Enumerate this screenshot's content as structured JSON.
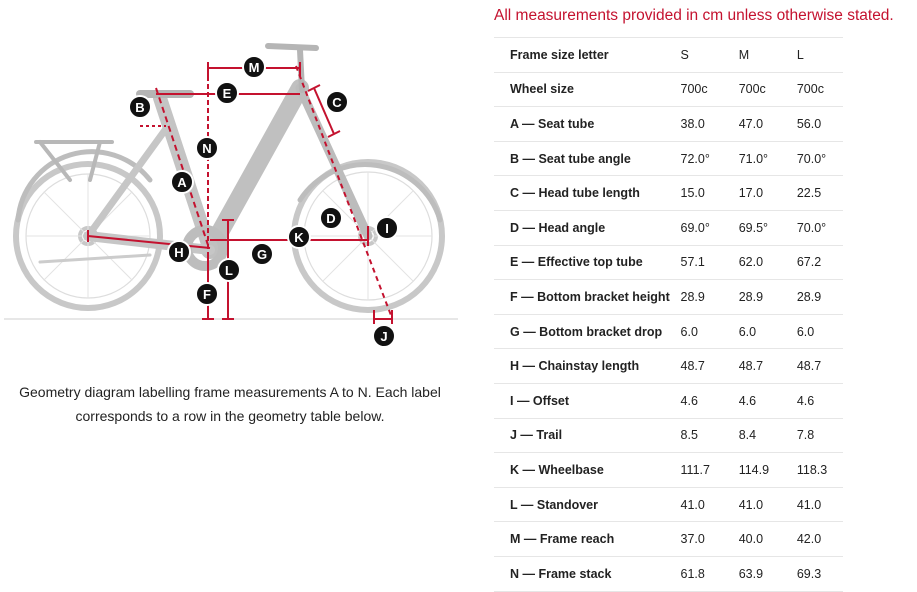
{
  "notice": "All measurements provided in cm unless otherwise stated.",
  "caption": {
    "line1": "Geometry diagram labelling frame measurements A to N. Each label",
    "line2": "corresponds to a row in the geometry table below."
  },
  "diagram_labels": {
    "A": "A",
    "B": "B",
    "C": "C",
    "D": "D",
    "E": "E",
    "F": "F",
    "G": "G",
    "H": "H",
    "I": "I",
    "J": "J",
    "K": "K",
    "L": "L",
    "M": "M",
    "N": "N"
  },
  "colors": {
    "accent": "#c4122f",
    "bike": "#c8c8c8",
    "label_bg": "#111111"
  },
  "table": {
    "rows": [
      {
        "label": "Frame size letter",
        "s": "S",
        "m": "M",
        "l": "L"
      },
      {
        "label": "Wheel size",
        "s": "700c",
        "m": "700c",
        "l": "700c"
      },
      {
        "label": "A — Seat tube",
        "s": "38.0",
        "m": "47.0",
        "l": "56.0"
      },
      {
        "label": "B — Seat tube angle",
        "s": "72.0°",
        "m": "71.0°",
        "l": "70.0°"
      },
      {
        "label": "C — Head tube length",
        "s": "15.0",
        "m": "17.0",
        "l": "22.5"
      },
      {
        "label": "D — Head angle",
        "s": "69.0°",
        "m": "69.5°",
        "l": "70.0°"
      },
      {
        "label": "E — Effective top tube",
        "s": "57.1",
        "m": "62.0",
        "l": "67.2"
      },
      {
        "label": "F — Bottom bracket height",
        "s": "28.9",
        "m": "28.9",
        "l": "28.9"
      },
      {
        "label": "G — Bottom bracket drop",
        "s": "6.0",
        "m": "6.0",
        "l": "6.0"
      },
      {
        "label": "H — Chainstay length",
        "s": "48.7",
        "m": "48.7",
        "l": "48.7"
      },
      {
        "label": "I — Offset",
        "s": "4.6",
        "m": "4.6",
        "l": "4.6"
      },
      {
        "label": "J — Trail",
        "s": "8.5",
        "m": "8.4",
        "l": "7.8"
      },
      {
        "label": "K — Wheelbase",
        "s": "111.7",
        "m": "114.9",
        "l": "118.3"
      },
      {
        "label": "L — Standover",
        "s": "41.0",
        "m": "41.0",
        "l": "41.0"
      },
      {
        "label": "M — Frame reach",
        "s": "37.0",
        "m": "40.0",
        "l": "42.0"
      },
      {
        "label": "N — Frame stack",
        "s": "61.8",
        "m": "63.9",
        "l": "69.3"
      }
    ]
  }
}
